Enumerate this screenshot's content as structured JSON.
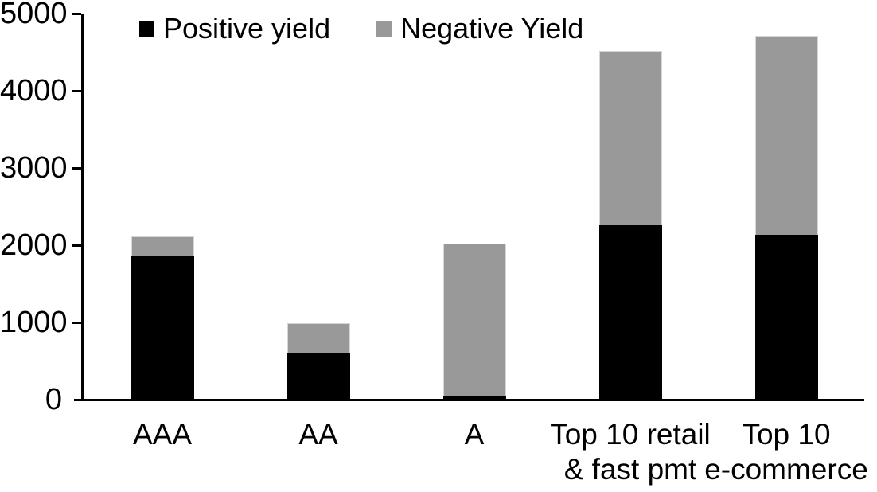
{
  "chart_data": {
    "type": "bar",
    "stacked": true,
    "title": "",
    "categories": [
      "AAA",
      "AA",
      "A",
      "Top 10 retail & fast pmt",
      "Top 10 e-commerce"
    ],
    "category_lines": [
      [
        "AAA"
      ],
      [
        "AA"
      ],
      [
        "A"
      ],
      [
        "Top 10 retail",
        "& fast pmt"
      ],
      [
        "Top 10",
        "e-commerce"
      ]
    ],
    "series": [
      {
        "name": "Positive yield",
        "color": "#000000",
        "values": [
          1870,
          610,
          40,
          2260,
          2130
        ]
      },
      {
        "name": "Negative Yield",
        "color": "#999999",
        "values": [
          240,
          380,
          1980,
          2260,
          2580
        ]
      }
    ],
    "totals": [
      2110,
      990,
      2020,
      4520,
      4710
    ],
    "ylim": [
      0,
      5000
    ],
    "y_ticks": [
      "0",
      "1000",
      "2000",
      "3000",
      "4000",
      "5000"
    ],
    "grid": false,
    "legend_position": "top",
    "background_color": "#ffffff",
    "axis_color": "#000000"
  },
  "legend": {
    "items": [
      {
        "label": "Positive yield",
        "color": "#000000"
      },
      {
        "label": "Negative Yield",
        "color": "#999999"
      }
    ]
  }
}
